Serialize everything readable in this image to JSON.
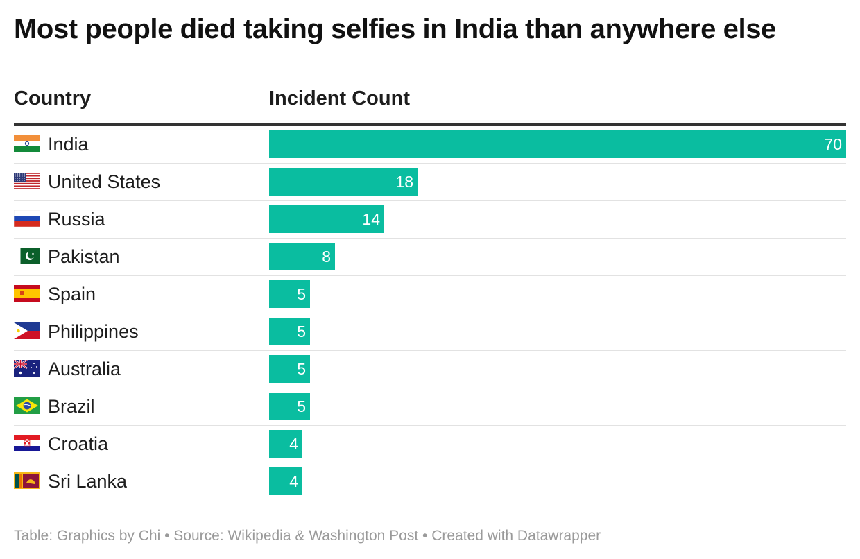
{
  "title": "Most people died taking selfies in India than anywhere else",
  "columns": {
    "country": "Country",
    "count": "Incident Count"
  },
  "footer": "Table: Graphics by Chi • Source: Wikipedia & Washington Post • Created with Datawrapper",
  "colors": {
    "bar": "#0abda0",
    "bar_text": "#ffffff",
    "header_rule": "#333333",
    "row_divider": "#e2e2e2",
    "footer_text": "#9a9a9a"
  },
  "chart_data": {
    "type": "bar",
    "orientation": "horizontal",
    "categories": [
      "India",
      "United States",
      "Russia",
      "Pakistan",
      "Spain",
      "Philippines",
      "Australia",
      "Brazil",
      "Croatia",
      "Sri Lanka"
    ],
    "values": [
      70,
      18,
      14,
      8,
      5,
      5,
      5,
      5,
      4,
      4
    ],
    "flags": [
      "india-flag-icon",
      "usa-flag-icon",
      "russia-flag-icon",
      "pakistan-flag-icon",
      "spain-flag-icon",
      "philippines-flag-icon",
      "australia-flag-icon",
      "brazil-flag-icon",
      "croatia-flag-icon",
      "sri-lanka-flag-icon"
    ],
    "xlim": [
      0,
      70
    ],
    "grid": false,
    "legend": "none"
  }
}
